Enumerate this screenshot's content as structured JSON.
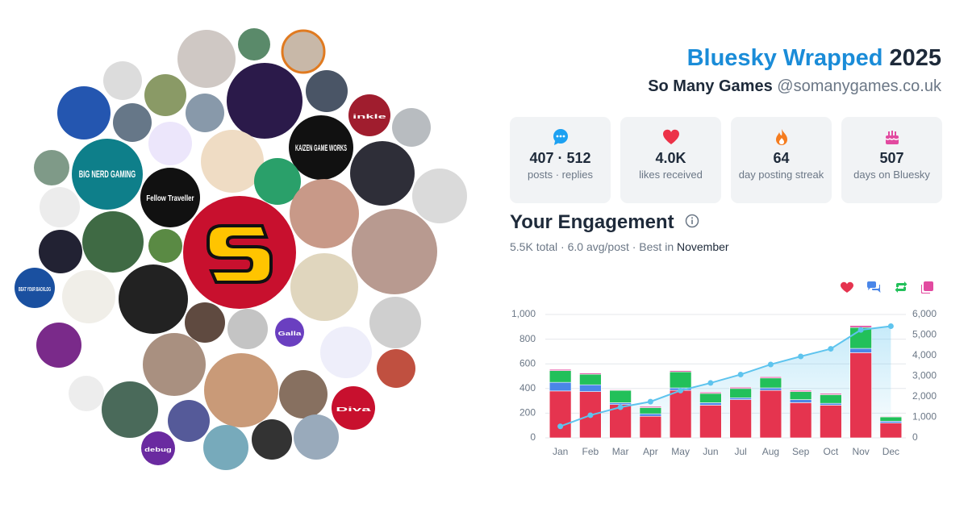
{
  "header": {
    "title": "Bluesky Wrapped",
    "year": "2025",
    "name": "So Many Games",
    "handle": "@somanygames.co.uk"
  },
  "avatar_texts": [
    "BIG NERD GAMING",
    "KAIZEN GAME WORKS",
    "Fellow Traveller",
    "inkle",
    "BEAT YOUR BACKLOG",
    "Diva",
    "debug",
    "Galla"
  ],
  "stats": [
    {
      "value": "407 · 512",
      "label": "posts · replies"
    },
    {
      "value": "4.0K",
      "label": "likes received"
    },
    {
      "value": "64",
      "label": "day posting streak"
    },
    {
      "value": "507",
      "label": "days on Bluesky"
    }
  ],
  "engagement": {
    "title": "Your Engagement",
    "summary": "5.5K total · 6.0 avg/post · Best in",
    "best_month": "November"
  },
  "chart_data": {
    "type": "bar",
    "categories": [
      "Jan",
      "Feb",
      "Mar",
      "Apr",
      "May",
      "Jun",
      "Jul",
      "Aug",
      "Sep",
      "Oct",
      "Nov",
      "Dec"
    ],
    "stacked": true,
    "series": [
      {
        "color": "#e5344f",
        "values": [
          380,
          375,
          270,
          175,
          385,
          265,
          310,
          385,
          285,
          265,
          690,
          120
        ]
      },
      {
        "color": "#4a86e8",
        "values": [
          70,
          55,
          15,
          20,
          20,
          20,
          15,
          20,
          25,
          15,
          35,
          15
        ]
      },
      {
        "color": "#22c05a",
        "values": [
          95,
          85,
          100,
          50,
          130,
          75,
          75,
          80,
          65,
          70,
          170,
          35
        ]
      },
      {
        "color": "#e24aa0",
        "values": [
          10,
          10,
          5,
          10,
          10,
          10,
          10,
          10,
          10,
          10,
          15,
          5
        ]
      },
      {
        "type": "line",
        "axis": "y2",
        "color": "#5ec4ee",
        "area": true,
        "values": [
          560,
          1100,
          1490,
          1760,
          2300,
          2670,
          3080,
          3570,
          3960,
          4330,
          5250,
          5430
        ]
      }
    ],
    "ylim": [
      0,
      1000
    ],
    "yticks": [
      0,
      200,
      400,
      600,
      800,
      {
        "value": 1000,
        "label": "1,000"
      }
    ],
    "y2lim": [
      0,
      6000
    ],
    "y2ticks": [
      0,
      {
        "value": 1000,
        "label": "1,000"
      },
      {
        "value": 2000,
        "label": "2,000"
      },
      {
        "value": 3000,
        "label": "3,000"
      },
      {
        "value": 4000,
        "label": "4,000"
      },
      {
        "value": 5000,
        "label": "5,000"
      },
      {
        "value": 6000,
        "label": "6,000"
      }
    ],
    "grid": true
  }
}
